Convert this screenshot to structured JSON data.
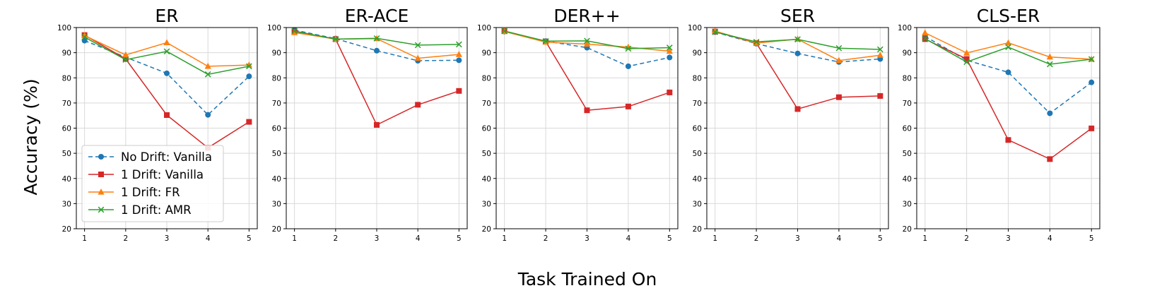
{
  "figure": {
    "xlabel": "Task Trained On",
    "ylabel": "Accuracy (%)"
  },
  "legend": {
    "location": "lower-left",
    "panel": 0,
    "entries": [
      "No Drift: Vanilla",
      "1 Drift: Vanilla",
      "1 Drift: FR",
      "1 Drift: AMR"
    ]
  },
  "colors": {
    "No Drift: Vanilla": "#1f77b4",
    "1 Drift: Vanilla": "#d62728",
    "1 Drift: FR": "#ff7f0e",
    "1 Drift: AMR": "#2ca02c"
  },
  "chart_data": [
    {
      "type": "line",
      "title": "ER",
      "x": [
        1,
        2,
        3,
        4,
        5
      ],
      "xlim": [
        0.8,
        5.2
      ],
      "ylim": [
        20,
        100
      ],
      "yticks": [
        20,
        30,
        40,
        50,
        60,
        70,
        80,
        90,
        100
      ],
      "grid": true,
      "series": [
        {
          "name": "No Drift: Vanilla",
          "values": [
            94.8,
            88.2,
            81.8,
            65.3,
            80.6
          ]
        },
        {
          "name": "1 Drift: Vanilla",
          "values": [
            97.0,
            87.5,
            65.2,
            52.2,
            62.5
          ]
        },
        {
          "name": "1 Drift: FR",
          "values": [
            96.8,
            89.1,
            94.0,
            84.6,
            85.1
          ]
        },
        {
          "name": "1 Drift: AMR",
          "values": [
            96.2,
            87.2,
            90.5,
            81.4,
            84.6
          ]
        }
      ]
    },
    {
      "type": "line",
      "title": "ER-ACE",
      "x": [
        1,
        2,
        3,
        4,
        5
      ],
      "xlim": [
        0.8,
        5.2
      ],
      "ylim": [
        20,
        100
      ],
      "yticks": [
        20,
        30,
        40,
        50,
        60,
        70,
        80,
        90,
        100
      ],
      "grid": true,
      "series": [
        {
          "name": "No Drift: Vanilla",
          "values": [
            99.0,
            95.6,
            90.8,
            86.8,
            87.0
          ]
        },
        {
          "name": "1 Drift: Vanilla",
          "values": [
            98.4,
            95.4,
            61.3,
            69.3,
            74.8
          ]
        },
        {
          "name": "1 Drift: FR",
          "values": [
            98.0,
            95.4,
            95.6,
            87.8,
            89.3
          ]
        },
        {
          "name": "1 Drift: AMR",
          "values": [
            98.6,
            95.4,
            95.7,
            93.0,
            93.3
          ]
        }
      ]
    },
    {
      "type": "line",
      "title": "DER++",
      "x": [
        1,
        2,
        3,
        4,
        5
      ],
      "xlim": [
        0.8,
        5.2
      ],
      "ylim": [
        20,
        100
      ],
      "yticks": [
        20,
        30,
        40,
        50,
        60,
        70,
        80,
        90,
        100
      ],
      "grid": true,
      "series": [
        {
          "name": "No Drift: Vanilla",
          "values": [
            98.4,
            94.6,
            92.0,
            84.6,
            88.1
          ]
        },
        {
          "name": "1 Drift: Vanilla",
          "values": [
            98.6,
            94.4,
            67.1,
            68.6,
            74.2
          ]
        },
        {
          "name": "1 Drift: FR",
          "values": [
            98.4,
            94.2,
            93.4,
            92.2,
            90.6
          ]
        },
        {
          "name": "1 Drift: AMR",
          "values": [
            98.6,
            94.6,
            94.7,
            91.6,
            92.0
          ]
        }
      ]
    },
    {
      "type": "line",
      "title": "SER",
      "x": [
        1,
        2,
        3,
        4,
        5
      ],
      "xlim": [
        0.8,
        5.2
      ],
      "ylim": [
        20,
        100
      ],
      "yticks": [
        20,
        30,
        40,
        50,
        60,
        70,
        80,
        90,
        100
      ],
      "grid": true,
      "series": [
        {
          "name": "No Drift: Vanilla",
          "values": [
            98.2,
            93.6,
            89.7,
            86.3,
            87.5
          ]
        },
        {
          "name": "1 Drift: Vanilla",
          "values": [
            98.4,
            93.8,
            67.6,
            72.3,
            72.8
          ]
        },
        {
          "name": "1 Drift: FR",
          "values": [
            98.6,
            93.8,
            95.4,
            86.9,
            89.0
          ]
        },
        {
          "name": "1 Drift: AMR",
          "values": [
            98.2,
            94.3,
            95.3,
            91.8,
            91.3
          ]
        }
      ]
    },
    {
      "type": "line",
      "title": "CLS-ER",
      "x": [
        1,
        2,
        3,
        4,
        5
      ],
      "xlim": [
        0.8,
        5.2
      ],
      "ylim": [
        20,
        100
      ],
      "yticks": [
        20,
        30,
        40,
        50,
        60,
        70,
        80,
        90,
        100
      ],
      "grid": true,
      "series": [
        {
          "name": "No Drift: Vanilla",
          "values": [
            96.5,
            87.0,
            82.2,
            65.9,
            78.2
          ]
        },
        {
          "name": "1 Drift: Vanilla",
          "values": [
            95.4,
            87.5,
            55.3,
            47.7,
            59.9
          ]
        },
        {
          "name": "1 Drift: FR",
          "values": [
            97.9,
            89.9,
            93.9,
            88.3,
            87.4
          ]
        },
        {
          "name": "1 Drift: AMR",
          "values": [
            95.6,
            86.3,
            92.2,
            85.4,
            87.4
          ]
        }
      ]
    }
  ]
}
